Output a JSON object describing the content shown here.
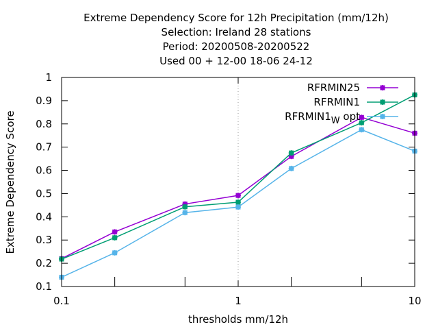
{
  "chart_data": {
    "type": "line",
    "title_lines": [
      "Extreme Dependency Score  for 12h Precipitation (mm/12h)",
      "Selection: Ireland      28 stations",
      "Period: 20200508-20200522",
      "Used  00 + 12-00 18-06 24-12"
    ],
    "xlabel": "thresholds mm/12h",
    "ylabel": "Extreme Dependency Score",
    "x_scale": "log",
    "xlim": [
      0.1,
      10
    ],
    "ylim": [
      0.1,
      1.0
    ],
    "x_ticks": [
      {
        "value": 0.1,
        "label": "0.1"
      },
      {
        "value": 1,
        "label": "1"
      },
      {
        "value": 10,
        "label": "10"
      }
    ],
    "y_ticks": [
      {
        "value": 0.1,
        "label": "0.1"
      },
      {
        "value": 0.2,
        "label": "0.2"
      },
      {
        "value": 0.3,
        "label": "0.3"
      },
      {
        "value": 0.4,
        "label": "0.4"
      },
      {
        "value": 0.5,
        "label": "0.5"
      },
      {
        "value": 0.6,
        "label": "0.6"
      },
      {
        "value": 0.7,
        "label": "0.7"
      },
      {
        "value": 0.8,
        "label": "0.8"
      },
      {
        "value": 0.9,
        "label": "0.9"
      },
      {
        "value": 1.0,
        "label": "1"
      }
    ],
    "grid": "dotted at x=1",
    "legend_position": "top-right",
    "x": [
      0.1,
      0.2,
      0.5,
      1,
      2,
      5,
      10
    ],
    "series": [
      {
        "name": "RFRMIN25",
        "label_main": "RFRMIN25",
        "label_sub": "",
        "label_suffix": "",
        "color": "#9400d3",
        "values": [
          0.22,
          0.335,
          0.455,
          0.492,
          0.66,
          0.828,
          0.76
        ]
      },
      {
        "name": "RFRMIN1",
        "label_main": "RFRMIN1",
        "label_sub": "",
        "label_suffix": "",
        "color": "#009e73",
        "values": [
          0.218,
          0.31,
          0.443,
          0.463,
          0.675,
          0.805,
          0.925
        ]
      },
      {
        "name": "RFRMIN1_W opt",
        "label_main": "RFRMIN1",
        "label_sub": "W",
        "label_suffix": " opt",
        "color": "#56b4e9",
        "values": [
          0.14,
          0.245,
          0.418,
          0.442,
          0.608,
          0.775,
          0.683
        ]
      }
    ]
  }
}
